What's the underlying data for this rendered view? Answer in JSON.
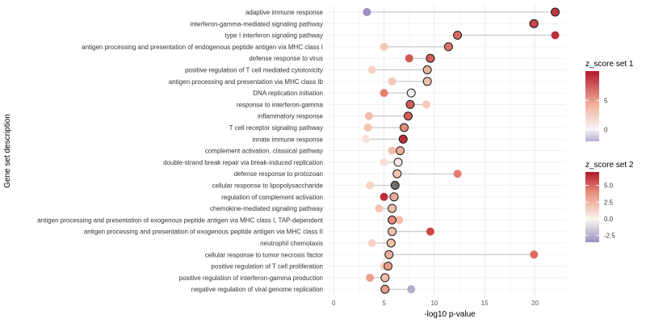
{
  "chart_data": {
    "type": "scatter",
    "xlabel": "-log10 p-value",
    "ylabel": "Gene set description",
    "xlim": [
      -0.5,
      23
    ],
    "xticks": [
      0,
      5,
      10,
      15,
      20
    ],
    "grid": true,
    "categories": [
      "adaptive immune response",
      "interferon-gamma-mediated signaling pathway",
      "type I interferon signaling pathway",
      "antigen processing and presentation of endogenous peptide antigen via MHC class I",
      "defense response to virus",
      "positive regulation of T cell mediated cytotoxicity",
      "antigen processing and presentation via MHC class Ib",
      "DNA replication initiation",
      "response to interferon-gamma",
      "inflammatory response",
      "T cell receptor signaling pathway",
      "innate immune response",
      "complement activation, classical pathway",
      "double-strand break repair via break-induced replication",
      "defense response to protozoan",
      "cellular response to lipopolysaccharide",
      "regulation of complement activation",
      "chemokine-mediated signaling pathway",
      "antigen processing and presentation of exogenous peptide antigen via MHC class I, TAP-dependent",
      "antigen processing and presentation of exogenous peptide antigen via MHC class II",
      "neutrophil chemotaxis",
      "cellular response to tumor necrosis factor",
      "positive regulation of T cell proliferation",
      "positive regulation of interferon-gamma production",
      "negative regulation of viral genome replication"
    ],
    "series": [
      {
        "name": "set 1",
        "x": [
          22.0,
          19.9,
          12.3,
          11.4,
          9.6,
          9.3,
          9.3,
          7.7,
          7.6,
          7.4,
          7.0,
          6.9,
          6.6,
          6.4,
          6.3,
          6.1,
          6.0,
          5.8,
          5.8,
          5.8,
          5.7,
          5.5,
          5.4,
          5.1,
          5.1
        ],
        "z": [
          8.5,
          8.0,
          6.5,
          6.0,
          7.0,
          2.5,
          2.0,
          -1.5,
          7.0,
          7.0,
          5.0,
          9.0,
          3.0,
          -1.0,
          1.5,
          -5.0,
          3.0,
          2.0,
          5.0,
          2.0,
          2.0,
          3.0,
          4.0,
          2.0,
          4.0
        ]
      },
      {
        "name": "set 2",
        "x": [
          3.3,
          19.8,
          22.0,
          5.0,
          7.5,
          3.8,
          5.8,
          5.0,
          9.2,
          3.5,
          3.4,
          3.2,
          5.8,
          5.0,
          12.3,
          3.6,
          5.0,
          4.5,
          6.5,
          9.6,
          3.8,
          19.9,
          5.0,
          3.6,
          7.7
        ],
        "z": [
          -5.0,
          4.5,
          6.5,
          2.0,
          5.5,
          1.5,
          2.0,
          4.5,
          1.8,
          2.5,
          2.2,
          0.8,
          2.5,
          1.0,
          4.5,
          1.5,
          6.5,
          2.2,
          2.5,
          5.8,
          1.5,
          5.0,
          1.5,
          3.5,
          -2.5
        ]
      }
    ],
    "legends": [
      {
        "title": "z_score set 1",
        "ticks": [
          "0",
          "5"
        ],
        "range": [
          -2,
          10
        ],
        "tick_values": [
          0,
          5
        ]
      },
      {
        "title": "z_score set 2",
        "ticks": [
          "5.0",
          "2.5",
          "0.0",
          "-2.5"
        ],
        "range": [
          -3.5,
          7
        ],
        "tick_values": [
          5.0,
          2.5,
          0.0,
          -2.5
        ]
      }
    ]
  }
}
